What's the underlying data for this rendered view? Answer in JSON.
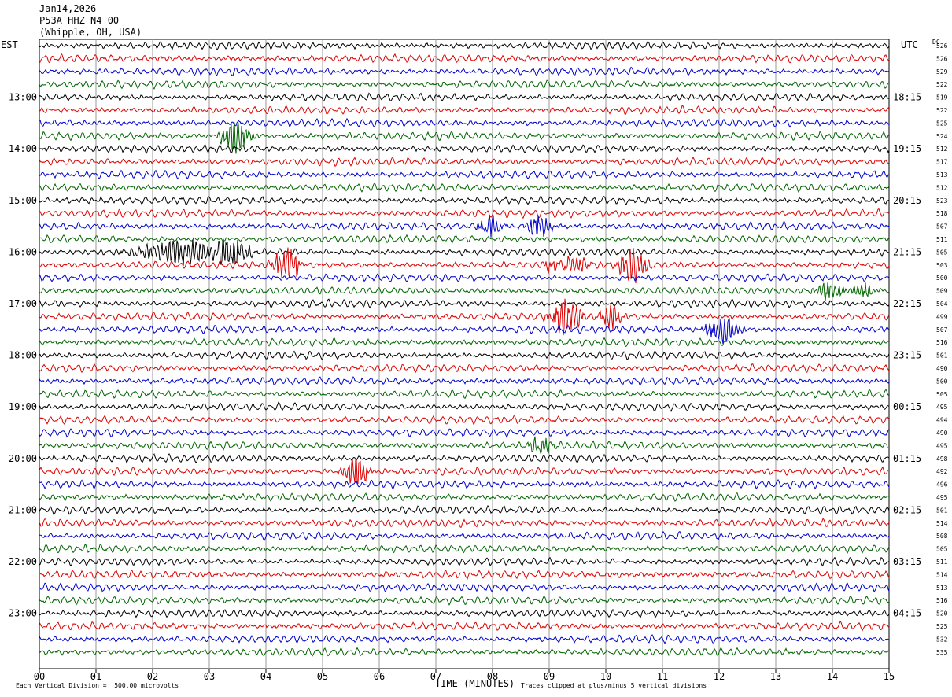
{
  "header": {
    "date": "Jan14,2026",
    "station": "P53A HHZ N4 00",
    "location": "(Whipple, OH, USA)"
  },
  "left_axis_label": "EST",
  "right_axis_label": "UTC",
  "dc_label": "DC",
  "footer": {
    "scale": "Each Vertical Division =  500.00 microvolts",
    "xlabel": "TIME (MINUTES)",
    "clip_note": "Traces clipped at plus/minus 5 vertical divisions"
  },
  "chart_data": {
    "type": "line",
    "title": "P53A HHZ N4 00 (Whipple, OH, USA) Jan14,2026",
    "xlabel": "TIME (MINUTES)",
    "xlim": [
      0,
      15
    ],
    "x_ticks": [
      "00",
      "01",
      "02",
      "03",
      "04",
      "05",
      "06",
      "07",
      "08",
      "09",
      "10",
      "11",
      "12",
      "13",
      "14",
      "15"
    ],
    "trace_minutes": 15,
    "trace_colors": [
      "#000000",
      "#dd0000",
      "#0000cc",
      "#006400"
    ],
    "left_time_labels": [
      {
        "row": 4,
        "label": "13:00"
      },
      {
        "row": 8,
        "label": "14:00"
      },
      {
        "row": 12,
        "label": "15:00"
      },
      {
        "row": 16,
        "label": "16:00"
      },
      {
        "row": 20,
        "label": "17:00"
      },
      {
        "row": 24,
        "label": "18:00"
      },
      {
        "row": 28,
        "label": "19:00"
      },
      {
        "row": 32,
        "label": "20:00"
      },
      {
        "row": 36,
        "label": "21:00"
      },
      {
        "row": 40,
        "label": "22:00"
      },
      {
        "row": 44,
        "label": "23:00"
      }
    ],
    "right_time_labels": [
      {
        "row": 4,
        "label": "18:15"
      },
      {
        "row": 8,
        "label": "19:15"
      },
      {
        "row": 12,
        "label": "20:15"
      },
      {
        "row": 16,
        "label": "21:15"
      },
      {
        "row": 20,
        "label": "22:15"
      },
      {
        "row": 24,
        "label": "23:15"
      },
      {
        "row": 28,
        "label": "00:15"
      },
      {
        "row": 32,
        "label": "01:15"
      },
      {
        "row": 36,
        "label": "02:15"
      },
      {
        "row": 40,
        "label": "03:15"
      },
      {
        "row": 44,
        "label": "04:15"
      }
    ],
    "dc_offsets": [
      526,
      526,
      529,
      522,
      519,
      522,
      525,
      524,
      512,
      517,
      513,
      512,
      523,
      518,
      507,
      511,
      505,
      503,
      500,
      509,
      504,
      499,
      507,
      516,
      501,
      490,
      500,
      505,
      495,
      494,
      490,
      495,
      498,
      492,
      496,
      495,
      501,
      514,
      508,
      505,
      511,
      514,
      513,
      516,
      520,
      525,
      532,
      535
    ],
    "events": [
      {
        "row": 7,
        "minute": 3.45,
        "amp": 2.2,
        "dur": 0.35
      },
      {
        "row": 14,
        "minute": 7.95,
        "amp": 1.6,
        "dur": 0.3
      },
      {
        "row": 14,
        "minute": 8.82,
        "amp": 1.8,
        "dur": 0.3
      },
      {
        "row": 16,
        "minute": 2.2,
        "amp": 1.0,
        "dur": 0.9
      },
      {
        "row": 16,
        "minute": 2.65,
        "amp": 1.5,
        "dur": 0.6
      },
      {
        "row": 16,
        "minute": 3.4,
        "amp": 2.0,
        "dur": 0.45
      },
      {
        "row": 17,
        "minute": 4.35,
        "amp": 3.0,
        "dur": 0.3
      },
      {
        "row": 17,
        "minute": 9.45,
        "amp": 1.4,
        "dur": 0.3
      },
      {
        "row": 17,
        "minute": 10.48,
        "amp": 2.5,
        "dur": 0.35
      },
      {
        "row": 17,
        "minute": 9.0,
        "amp": 1.0,
        "dur": 0.2
      },
      {
        "row": 19,
        "minute": 13.95,
        "amp": 1.2,
        "dur": 0.35
      },
      {
        "row": 19,
        "minute": 14.55,
        "amp": 1.0,
        "dur": 0.3
      },
      {
        "row": 21,
        "minute": 9.3,
        "amp": 3.0,
        "dur": 0.35
      },
      {
        "row": 21,
        "minute": 10.1,
        "amp": 1.8,
        "dur": 0.25
      },
      {
        "row": 22,
        "minute": 12.05,
        "amp": 1.8,
        "dur": 0.4
      },
      {
        "row": 31,
        "minute": 8.85,
        "amp": 1.2,
        "dur": 0.3
      },
      {
        "row": 33,
        "minute": 5.6,
        "amp": 2.3,
        "dur": 0.3
      }
    ]
  }
}
